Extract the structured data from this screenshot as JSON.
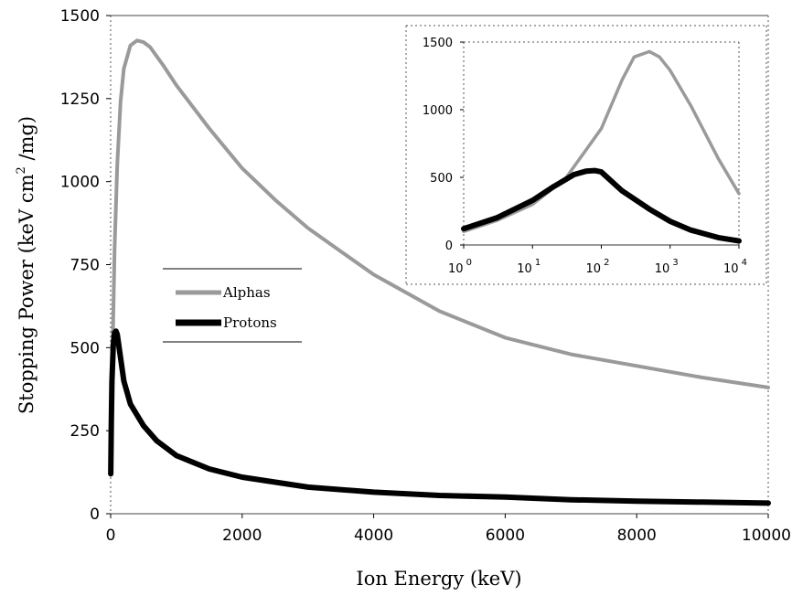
{
  "chart_data": [
    {
      "type": "line",
      "title": "",
      "xlabel": "Ion Energy (keV)",
      "ylabel_parts": [
        "Stopping Power (keV cm",
        "2",
        " /mg)"
      ],
      "xlim": [
        0,
        10000
      ],
      "ylim": [
        0,
        1500
      ],
      "x_ticks": [
        0,
        2000,
        4000,
        6000,
        8000,
        10000
      ],
      "x_tick_labels": [
        "0",
        "2000",
        "4000",
        "6000",
        "8000",
        "10000"
      ],
      "y_ticks": [
        0,
        250,
        500,
        750,
        1000,
        1250,
        1500
      ],
      "y_tick_labels": [
        "0",
        "250",
        "500",
        "750",
        "1000",
        "1250",
        "1500"
      ],
      "legend": {
        "placement": "center-left",
        "entries": [
          "Alphas",
          "Protons"
        ]
      },
      "series": [
        {
          "name": "Alphas",
          "color": "#9a9a9a",
          "x": [
            1,
            10,
            30,
            60,
            100,
            150,
            200,
            300,
            400,
            500,
            600,
            800,
            1000,
            1500,
            2000,
            2500,
            3000,
            3500,
            4000,
            5000,
            6000,
            7000,
            8000,
            9000,
            10000
          ],
          "y": [
            120,
            250,
            500,
            800,
            1050,
            1240,
            1340,
            1410,
            1425,
            1420,
            1405,
            1350,
            1290,
            1160,
            1040,
            945,
            860,
            790,
            720,
            610,
            530,
            480,
            445,
            410,
            380
          ]
        },
        {
          "name": "Protons",
          "color": "#000000",
          "x": [
            1,
            10,
            20,
            40,
            60,
            80,
            100,
            150,
            200,
            300,
            500,
            700,
            1000,
            1500,
            2000,
            3000,
            4000,
            5000,
            6000,
            7000,
            8000,
            9000,
            10000
          ],
          "y": [
            120,
            270,
            400,
            510,
            545,
            550,
            540,
            470,
            400,
            330,
            265,
            220,
            175,
            135,
            110,
            80,
            65,
            55,
            50,
            42,
            38,
            35,
            32
          ]
        }
      ]
    },
    {
      "type": "line",
      "title": "",
      "x_scale": "log",
      "xlim": [
        1,
        10000
      ],
      "ylim": [
        0,
        1500
      ],
      "x_ticks": [
        1,
        10,
        100,
        1000,
        10000
      ],
      "x_tick_bases": [
        "10",
        "10",
        "10",
        "10",
        "10"
      ],
      "x_tick_exponents": [
        "0",
        "1",
        "2",
        "3",
        "4"
      ],
      "y_ticks": [
        0,
        500,
        1000,
        1500
      ],
      "y_tick_labels": [
        "0",
        "500",
        "1000",
        "1500"
      ],
      "series": [
        {
          "name": "Alphas",
          "color": "#9a9a9a",
          "x": [
            1,
            3,
            10,
            30,
            100,
            200,
            300,
            500,
            700,
            1000,
            2000,
            5000,
            10000
          ],
          "y": [
            100,
            180,
            300,
            490,
            860,
            1220,
            1390,
            1430,
            1390,
            1290,
            1030,
            640,
            380
          ]
        },
        {
          "name": "Protons",
          "color": "#000000",
          "x": [
            1,
            3,
            10,
            20,
            40,
            60,
            80,
            100,
            200,
            500,
            1000,
            2000,
            5000,
            10000
          ],
          "y": [
            120,
            200,
            330,
            430,
            520,
            545,
            550,
            540,
            400,
            265,
            175,
            110,
            55,
            30
          ]
        }
      ]
    }
  ]
}
